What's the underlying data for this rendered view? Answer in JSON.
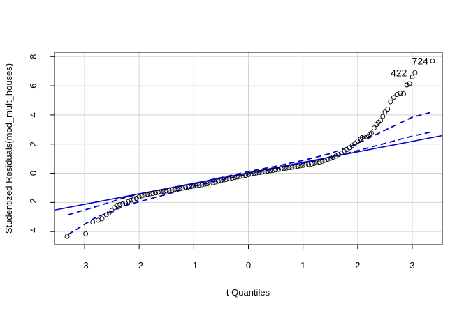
{
  "chart_data": {
    "type": "scatter",
    "title": "",
    "xlabel": "t Quantiles",
    "ylabel": "Studentized Residuals(mod_mult_houses)",
    "xlim": [
      -3.55,
      3.55
    ],
    "ylim": [
      -4.9,
      8.3
    ],
    "x_ticks": [
      -3,
      -2,
      -1,
      0,
      1,
      2,
      3
    ],
    "y_ticks": [
      -4,
      -2,
      0,
      2,
      4,
      6,
      8
    ],
    "grid": true,
    "colors": {
      "points": "#000000",
      "reference": "#0000cc",
      "grid": "#d3d3d3",
      "axis": "#000000"
    },
    "point_labels": [
      {
        "text": "724",
        "x": 3.37,
        "y": 7.7
      },
      {
        "text": "422",
        "x": 2.98,
        "y": 6.9
      }
    ],
    "reference_line": {
      "intercept": 0.03,
      "slope": 0.72
    },
    "confidence_upper": [
      [
        -3.3,
        -2.85
      ],
      [
        -2.8,
        -2.3
      ],
      [
        -2.2,
        -1.6
      ],
      [
        -1.5,
        -1.05
      ],
      [
        -1.0,
        -0.7
      ],
      [
        -0.5,
        -0.3
      ],
      [
        0.0,
        0.12
      ],
      [
        0.5,
        0.48
      ],
      [
        1.0,
        0.88
      ],
      [
        1.5,
        1.35
      ],
      [
        2.0,
        2.05
      ],
      [
        2.5,
        2.95
      ],
      [
        3.0,
        3.85
      ],
      [
        3.37,
        4.2
      ]
    ],
    "confidence_lower": [
      [
        -3.3,
        -4.2
      ],
      [
        -2.8,
        -3.05
      ],
      [
        -2.2,
        -2.15
      ],
      [
        -1.5,
        -1.45
      ],
      [
        -1.0,
        -0.9
      ],
      [
        -0.5,
        -0.45
      ],
      [
        0.0,
        -0.06
      ],
      [
        0.5,
        0.32
      ],
      [
        1.0,
        0.7
      ],
      [
        1.5,
        1.07
      ],
      [
        2.0,
        1.55
      ],
      [
        2.5,
        2.05
      ],
      [
        3.0,
        2.55
      ],
      [
        3.37,
        2.85
      ]
    ],
    "points": [
      [
        -3.32,
        -4.33
      ],
      [
        -2.98,
        -4.15
      ],
      [
        -2.85,
        -3.35
      ],
      [
        -2.75,
        -3.22
      ],
      [
        -2.68,
        -3.12
      ],
      [
        -2.6,
        -2.85
      ],
      [
        -2.55,
        -2.72
      ],
      [
        -2.5,
        -2.55
      ],
      [
        -2.45,
        -2.35
      ],
      [
        -2.4,
        -2.2
      ],
      [
        -2.35,
        -2.15
      ],
      [
        -2.3,
        -2.1
      ],
      [
        -2.25,
        -2.05
      ],
      [
        -2.2,
        -1.95
      ],
      [
        -2.15,
        -1.85
      ],
      [
        -2.1,
        -1.78
      ],
      [
        -2.05,
        -1.72
      ],
      [
        -2.0,
        -1.62
      ],
      [
        -1.95,
        -1.55
      ],
      [
        -1.9,
        -1.5
      ],
      [
        -1.85,
        -1.45
      ],
      [
        -1.8,
        -1.42
      ],
      [
        -1.75,
        -1.38
      ],
      [
        -1.7,
        -1.35
      ],
      [
        -1.65,
        -1.32
      ],
      [
        -1.6,
        -1.28
      ],
      [
        -1.55,
        -1.25
      ],
      [
        -1.5,
        -1.22
      ],
      [
        -1.45,
        -1.18
      ],
      [
        -1.4,
        -1.15
      ],
      [
        -1.35,
        -1.12
      ],
      [
        -1.3,
        -1.08
      ],
      [
        -1.25,
        -1.05
      ],
      [
        -1.2,
        -1.02
      ],
      [
        -1.15,
        -0.98
      ],
      [
        -1.1,
        -0.95
      ],
      [
        -1.05,
        -0.92
      ],
      [
        -1.0,
        -0.88
      ],
      [
        -0.95,
        -0.85
      ],
      [
        -0.9,
        -0.82
      ],
      [
        -0.85,
        -0.78
      ],
      [
        -0.8,
        -0.75
      ],
      [
        -0.75,
        -0.72
      ],
      [
        -0.7,
        -0.68
      ],
      [
        -0.65,
        -0.65
      ],
      [
        -0.6,
        -0.6
      ],
      [
        -0.55,
        -0.55
      ],
      [
        -0.5,
        -0.5
      ],
      [
        -0.45,
        -0.46
      ],
      [
        -0.4,
        -0.42
      ],
      [
        -0.35,
        -0.38
      ],
      [
        -0.3,
        -0.34
      ],
      [
        -0.25,
        -0.3
      ],
      [
        -0.2,
        -0.26
      ],
      [
        -0.15,
        -0.22
      ],
      [
        -0.1,
        -0.18
      ],
      [
        -0.05,
        -0.14
      ],
      [
        0.0,
        -0.1
      ],
      [
        0.05,
        -0.06
      ],
      [
        0.1,
        -0.02
      ],
      [
        0.15,
        0.02
      ],
      [
        0.2,
        0.05
      ],
      [
        0.25,
        0.08
      ],
      [
        0.3,
        0.11
      ],
      [
        0.35,
        0.14
      ],
      [
        0.4,
        0.17
      ],
      [
        0.45,
        0.2
      ],
      [
        0.5,
        0.23
      ],
      [
        0.55,
        0.26
      ],
      [
        0.6,
        0.29
      ],
      [
        0.65,
        0.32
      ],
      [
        0.7,
        0.35
      ],
      [
        0.75,
        0.38
      ],
      [
        0.8,
        0.41
      ],
      [
        0.85,
        0.44
      ],
      [
        0.9,
        0.47
      ],
      [
        0.95,
        0.5
      ],
      [
        1.0,
        0.54
      ],
      [
        1.05,
        0.57
      ],
      [
        1.1,
        0.6
      ],
      [
        1.15,
        0.63
      ],
      [
        1.2,
        0.67
      ],
      [
        1.25,
        0.71
      ],
      [
        1.3,
        0.76
      ],
      [
        1.35,
        0.82
      ],
      [
        1.4,
        0.88
      ],
      [
        1.45,
        0.95
      ],
      [
        1.5,
        1.02
      ],
      [
        1.55,
        1.1
      ],
      [
        1.6,
        1.18
      ],
      [
        1.65,
        1.28
      ],
      [
        1.7,
        1.38
      ],
      [
        1.75,
        1.5
      ],
      [
        1.8,
        1.62
      ],
      [
        1.85,
        1.75
      ],
      [
        1.9,
        1.9
      ],
      [
        1.95,
        2.05
      ],
      [
        2.0,
        2.2
      ],
      [
        2.05,
        2.35
      ],
      [
        2.08,
        2.45
      ],
      [
        2.12,
        2.5
      ],
      [
        2.16,
        2.48
      ],
      [
        2.2,
        2.55
      ],
      [
        2.22,
        2.68
      ],
      [
        2.25,
        2.75
      ],
      [
        2.3,
        3.1
      ],
      [
        2.35,
        3.35
      ],
      [
        2.38,
        3.5
      ],
      [
        2.42,
        3.62
      ],
      [
        2.46,
        3.9
      ],
      [
        2.5,
        4.2
      ],
      [
        2.55,
        4.4
      ],
      [
        2.6,
        4.9
      ],
      [
        2.66,
        5.2
      ],
      [
        2.72,
        5.4
      ],
      [
        2.78,
        5.5
      ],
      [
        2.84,
        5.45
      ],
      [
        2.9,
        6.05
      ],
      [
        2.95,
        6.15
      ],
      [
        3.0,
        6.6
      ],
      [
        3.05,
        6.9
      ],
      [
        3.37,
        7.7
      ]
    ]
  }
}
